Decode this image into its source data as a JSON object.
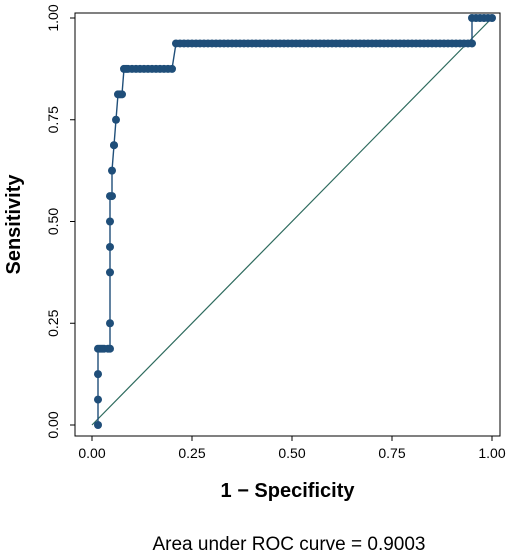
{
  "chart_data": {
    "type": "line",
    "title": "",
    "xlabel": "1 − Specificity",
    "ylabel": "Sensitivity",
    "xlim": [
      0,
      1
    ],
    "ylim": [
      0,
      1
    ],
    "x_ticks": [
      "0.00",
      "0.25",
      "0.50",
      "0.75",
      "1.00"
    ],
    "y_ticks": [
      "0.00",
      "0.25",
      "0.50",
      "0.75",
      "1.00"
    ],
    "grid": false,
    "footnote": "Area under ROC curve = 0.9003",
    "colors": {
      "roc": "#1f4e79",
      "reference": "#2e6b5e",
      "axis": "#000000"
    },
    "series": [
      {
        "x": [
          0.015,
          0.015,
          0.015,
          0.015,
          0.02,
          0.025,
          0.03,
          0.04,
          0.045,
          0.045,
          0.045,
          0.045,
          0.045,
          0.045,
          0.05,
          0.05,
          0.055,
          0.055,
          0.06,
          0.065,
          0.07,
          0.075,
          0.08,
          0.085,
          0.09,
          0.1,
          0.11,
          0.12,
          0.13,
          0.14,
          0.15,
          0.16,
          0.17,
          0.18,
          0.19,
          0.2,
          0.21,
          0.22,
          0.23,
          0.24,
          0.25,
          0.26,
          0.27,
          0.28,
          0.29,
          0.3,
          0.31,
          0.32,
          0.33,
          0.34,
          0.35,
          0.36,
          0.37,
          0.38,
          0.39,
          0.4,
          0.41,
          0.42,
          0.43,
          0.44,
          0.45,
          0.46,
          0.47,
          0.48,
          0.49,
          0.5,
          0.51,
          0.52,
          0.53,
          0.54,
          0.55,
          0.56,
          0.57,
          0.58,
          0.59,
          0.6,
          0.61,
          0.62,
          0.63,
          0.64,
          0.65,
          0.66,
          0.67,
          0.68,
          0.69,
          0.7,
          0.71,
          0.72,
          0.73,
          0.74,
          0.75,
          0.76,
          0.77,
          0.78,
          0.79,
          0.8,
          0.81,
          0.82,
          0.83,
          0.84,
          0.85,
          0.86,
          0.87,
          0.88,
          0.89,
          0.9,
          0.91,
          0.92,
          0.93,
          0.94,
          0.95,
          0.95,
          0.96,
          0.97,
          0.98,
          0.99,
          1.0
        ],
        "y": [
          0.0,
          0.0625,
          0.125,
          0.1875,
          0.1875,
          0.1875,
          0.1875,
          0.1875,
          0.1875,
          0.25,
          0.375,
          0.4375,
          0.5,
          0.5625,
          0.5625,
          0.625,
          0.6875,
          0.6875,
          0.75,
          0.8125,
          0.8125,
          0.8125,
          0.875,
          0.875,
          0.875,
          0.875,
          0.875,
          0.875,
          0.875,
          0.875,
          0.875,
          0.875,
          0.875,
          0.875,
          0.875,
          0.875,
          0.9375,
          0.9375,
          0.9375,
          0.9375,
          0.9375,
          0.9375,
          0.9375,
          0.9375,
          0.9375,
          0.9375,
          0.9375,
          0.9375,
          0.9375,
          0.9375,
          0.9375,
          0.9375,
          0.9375,
          0.9375,
          0.9375,
          0.9375,
          0.9375,
          0.9375,
          0.9375,
          0.9375,
          0.9375,
          0.9375,
          0.9375,
          0.9375,
          0.9375,
          0.9375,
          0.9375,
          0.9375,
          0.9375,
          0.9375,
          0.9375,
          0.9375,
          0.9375,
          0.9375,
          0.9375,
          0.9375,
          0.9375,
          0.9375,
          0.9375,
          0.9375,
          0.9375,
          0.9375,
          0.9375,
          0.9375,
          0.9375,
          0.9375,
          0.9375,
          0.9375,
          0.9375,
          0.9375,
          0.9375,
          0.9375,
          0.9375,
          0.9375,
          0.9375,
          0.9375,
          0.9375,
          0.9375,
          0.9375,
          0.9375,
          0.9375,
          0.9375,
          0.9375,
          0.9375,
          0.9375,
          0.9375,
          0.9375,
          0.9375,
          0.9375,
          0.9375,
          0.9375,
          1.0,
          1.0,
          1.0,
          1.0,
          1.0,
          1.0
        ]
      },
      {
        "x": [
          0,
          1
        ],
        "y": [
          0,
          1
        ]
      }
    ]
  }
}
